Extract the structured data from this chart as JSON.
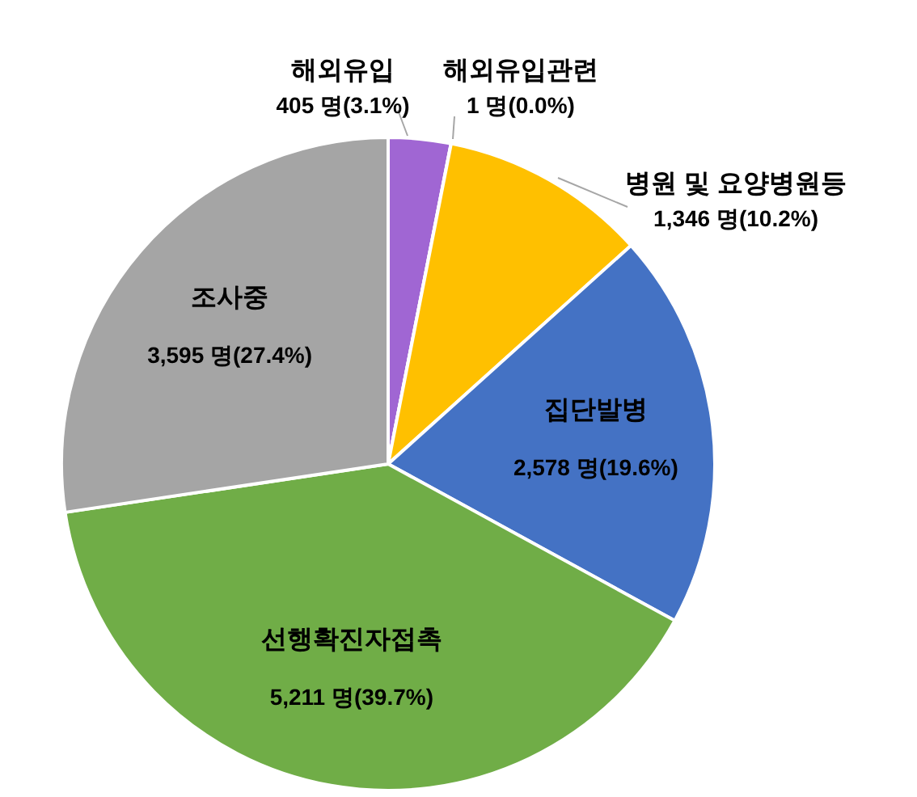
{
  "chart_data": {
    "type": "pie",
    "categories": [
      "해외유입",
      "해외유입관련",
      "병원 및 요양병원등",
      "집단발병",
      "선행확진자접촉",
      "조사중"
    ],
    "values": [
      405,
      1,
      1346,
      2578,
      5211,
      3595
    ],
    "value_labels": [
      "405 명(3.1%)",
      "1 명(0.0%)",
      "1,346 명(10.2%)",
      "2,578 명(19.6%)",
      "5,211 명(39.7%)",
      "3,595 명(27.4%)"
    ],
    "colors": [
      "#a066d3",
      "#ed7d31",
      "#ffc000",
      "#4472c4",
      "#70ad47",
      "#a5a5a5"
    ],
    "legend": false
  }
}
